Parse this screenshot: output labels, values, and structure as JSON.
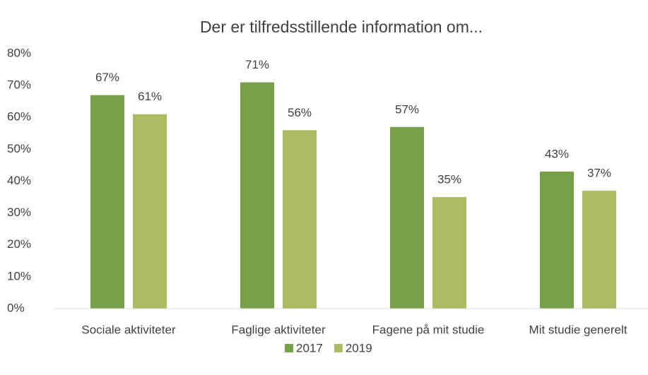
{
  "chart_data": {
    "type": "bar",
    "title": "Der er tilfredsstillende information om...",
    "categories": [
      "Sociale aktiviteter",
      "Faglige aktiviteter",
      "Fagene på mit studie",
      "Mit studie generelt"
    ],
    "series": [
      {
        "name": "2017",
        "color": "#77a04a",
        "values": [
          67,
          71,
          57,
          43
        ],
        "value_labels": [
          "67%",
          "71%",
          "57%",
          "43%"
        ]
      },
      {
        "name": "2019",
        "color": "#afbb62",
        "values": [
          61,
          56,
          35,
          37
        ],
        "value_labels": [
          "61%",
          "56%",
          "35%",
          "37%"
        ]
      }
    ],
    "ylim": [
      0,
      80
    ],
    "yticks": [
      {
        "value": 0,
        "label": "0%"
      },
      {
        "value": 10,
        "label": "10%"
      },
      {
        "value": 20,
        "label": "20%"
      },
      {
        "value": 30,
        "label": "30%"
      },
      {
        "value": 40,
        "label": "40%"
      },
      {
        "value": 50,
        "label": "50%"
      },
      {
        "value": 60,
        "label": "60%"
      },
      {
        "value": 70,
        "label": "70%"
      },
      {
        "value": 80,
        "label": "80%"
      }
    ],
    "grid": false,
    "legend": "bottom"
  }
}
